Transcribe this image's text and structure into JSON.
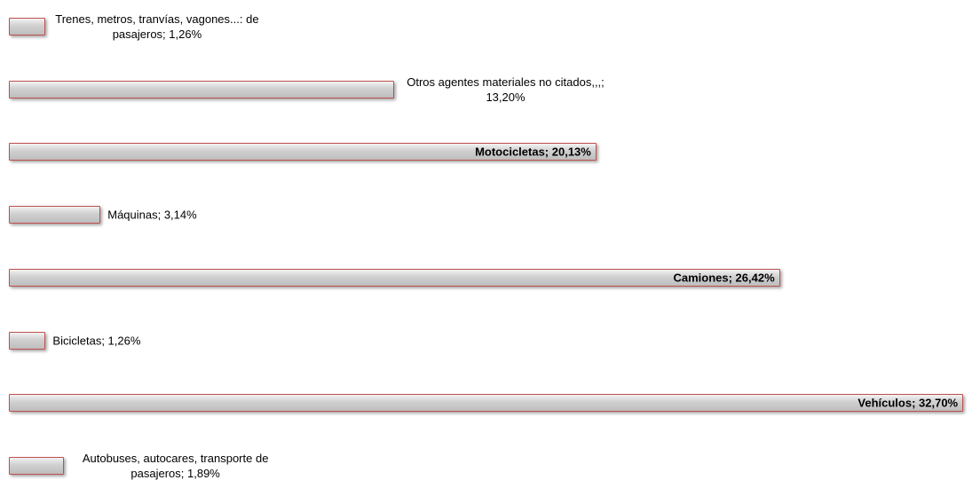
{
  "chart_data": {
    "type": "bar",
    "orientation": "horizontal",
    "values": [
      1.26,
      13.2,
      20.13,
      3.14,
      26.42,
      1.26,
      32.7,
      1.89
    ],
    "value_labels": [
      "Trenes, metros, tranvías, vagones...: de pasajeros; 1,26%",
      "Otros agentes materiales no citados,,,; 13,20%",
      "Motocicletas; 20,13%",
      "Máquinas; 3,14%",
      "Camiones; 26,42%",
      "Bicicletas; 1,26%",
      "Vehículos; 32,70%",
      "Autobuses, autocares, transporte de pasajeros; 1,89%"
    ],
    "color": "#d0d0d0",
    "edgecolor": "#c0504d",
    "xlim": [
      0,
      33
    ]
  }
}
